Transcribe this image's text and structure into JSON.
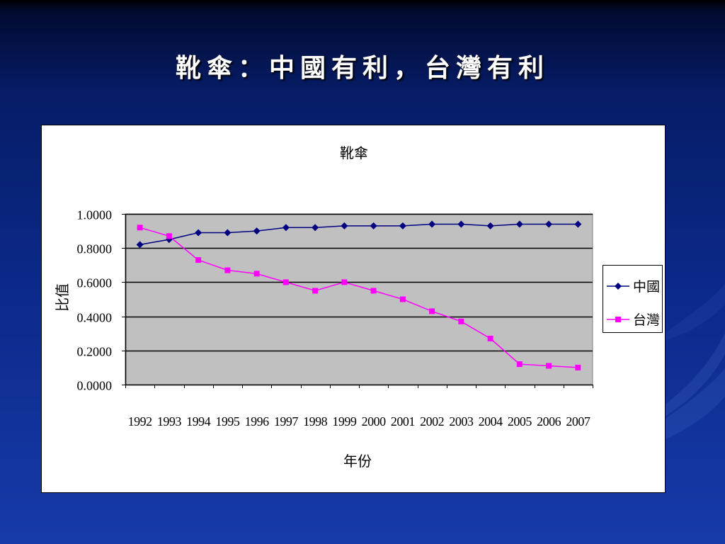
{
  "slide": {
    "title": "靴傘：中國有利，台灣有利"
  },
  "colors": {
    "background_top": "#020a30",
    "background_bottom": "#163aa8",
    "title_text": "#ffffff",
    "chart_panel": "#ffffff",
    "plot_area": "#c0c0c0",
    "gridline": "#000000"
  },
  "chart_data": {
    "type": "line",
    "title": "靴傘",
    "xlabel": "年份",
    "ylabel": "比值",
    "categories": [
      "1992",
      "1993",
      "1994",
      "1995",
      "1996",
      "1997",
      "1998",
      "1999",
      "2000",
      "2001",
      "2002",
      "2003",
      "2004",
      "2005",
      "2006",
      "2007"
    ],
    "ytick_labels": [
      "0.0000",
      "0.2000",
      "0.4000",
      "0.6000",
      "0.8000",
      "1.0000"
    ],
    "ylim": [
      0,
      1
    ],
    "grid": true,
    "legend_position": "right",
    "series": [
      {
        "name": "中國",
        "marker": "diamond",
        "color": "#000080",
        "values": [
          0.82,
          0.85,
          0.89,
          0.89,
          0.9,
          0.92,
          0.92,
          0.93,
          0.93,
          0.93,
          0.94,
          0.94,
          0.93,
          0.94,
          0.94,
          0.94
        ]
      },
      {
        "name": "台灣",
        "marker": "square",
        "color": "#ff00ff",
        "values": [
          0.92,
          0.87,
          0.73,
          0.67,
          0.65,
          0.6,
          0.55,
          0.6,
          0.55,
          0.5,
          0.43,
          0.37,
          0.27,
          0.12,
          0.11,
          0.1
        ]
      }
    ]
  }
}
